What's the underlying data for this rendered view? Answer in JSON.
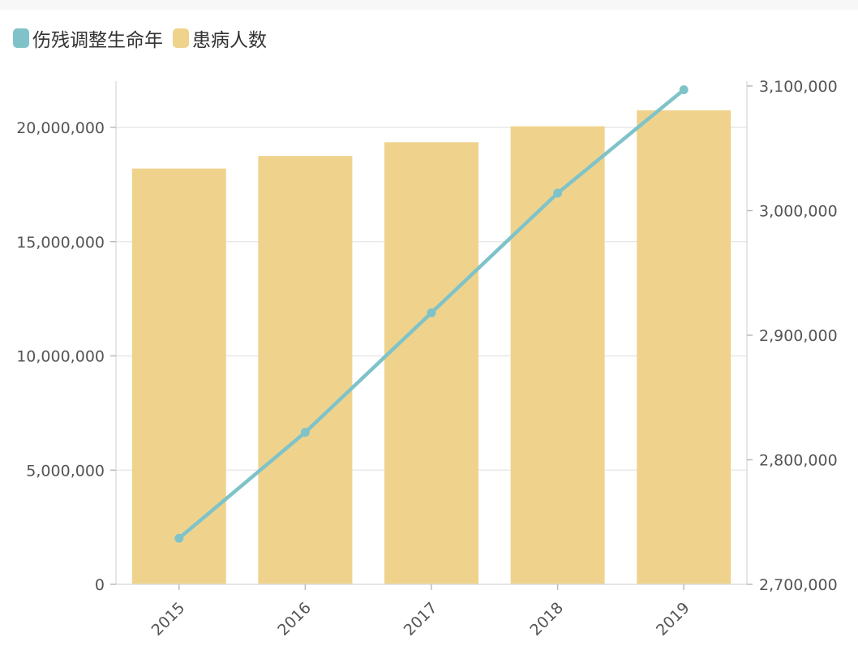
{
  "legend": {
    "line_label": "伤残调整生命年",
    "bar_label": "患病人数"
  },
  "colors": {
    "line": "#7fc3c9",
    "bar": "#efd38d",
    "grid": "#e8e8e8",
    "axis": "#dddddd"
  },
  "chart_data": {
    "type": "bar",
    "categories": [
      "2015",
      "2016",
      "2017",
      "2018",
      "2019"
    ],
    "series": [
      {
        "name": "患病人数",
        "type": "bar",
        "axis": "left",
        "values": [
          18200000,
          18750000,
          19350000,
          20050000,
          20750000
        ]
      },
      {
        "name": "伤残调整生命年",
        "type": "line",
        "axis": "right",
        "values": [
          2737000,
          2822000,
          2918000,
          3014000,
          3097000
        ]
      }
    ],
    "y_left": {
      "min": 0,
      "max": 20000000,
      "ticks": [
        "0",
        "5,000,000",
        "10,000,000",
        "15,000,000",
        "20,000,000"
      ],
      "tick_values": [
        0,
        5000000,
        10000000,
        15000000,
        20000000
      ]
    },
    "y_right": {
      "min": 2700000,
      "max": 3100000,
      "ticks": [
        "2,700,000",
        "2,800,000",
        "2,900,000",
        "3,000,000",
        "3,100,000"
      ],
      "tick_values": [
        2700000,
        2800000,
        2900000,
        3000000,
        3100000
      ]
    },
    "grid": true,
    "legend_position": "top-left"
  }
}
